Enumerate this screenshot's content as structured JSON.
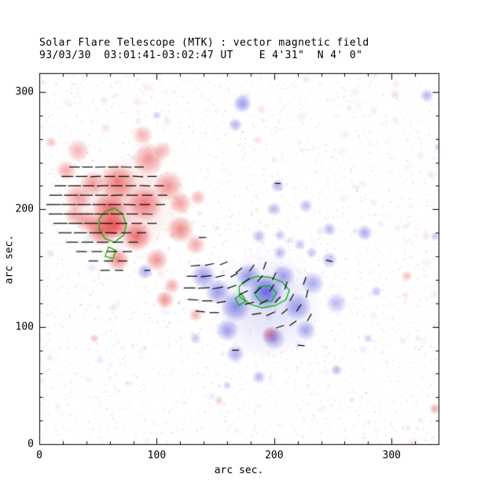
{
  "chart_data": {
    "type": "heatmap",
    "title": "Solar Flare Telescope (MTK) : vector magnetic field",
    "subtitle": "93/03/30  03:01:41-03:02:47 UT    E 4'31\"  N 4' 0\"",
    "xlabel": "arc sec.",
    "ylabel": "arc sec.",
    "xlim": [
      0,
      340
    ],
    "ylim": [
      0,
      316
    ],
    "xticks": [
      0,
      100,
      200,
      300
    ],
    "yticks": [
      0,
      100,
      200,
      300
    ],
    "minor_tick_step": 20,
    "colors": {
      "positive_polarity": "#e42828",
      "negative_polarity": "#4646dc",
      "contour": "#00b400",
      "vector": "#000000",
      "axis": "#000000",
      "background": "#ffffff"
    },
    "blobs": [
      [
        75,
        203,
        42,
        0.22,
        1
      ],
      [
        67,
        223,
        16,
        0.55,
        1
      ],
      [
        93,
        243,
        14,
        0.5,
        1
      ],
      [
        110,
        220,
        13,
        0.5,
        1
      ],
      [
        53,
        183,
        14,
        0.7,
        1
      ],
      [
        83,
        177,
        13,
        0.65,
        1
      ],
      [
        120,
        183,
        12,
        0.55,
        1
      ],
      [
        33,
        210,
        12,
        0.45,
        1
      ],
      [
        23,
        233,
        9,
        0.4,
        1
      ],
      [
        67,
        157,
        10,
        0.55,
        1
      ],
      [
        100,
        157,
        10,
        0.5,
        1
      ],
      [
        90,
        205,
        15,
        0.55,
        1
      ],
      [
        60,
        200,
        15,
        0.65,
        1
      ],
      [
        65,
        186,
        11,
        0.75,
        1
      ],
      [
        40,
        190,
        10,
        0.45,
        1
      ],
      [
        120,
        205,
        10,
        0.45,
        1
      ],
      [
        133,
        170,
        9,
        0.4,
        1
      ],
      [
        107,
        123,
        8,
        0.5,
        1
      ],
      [
        113,
        135,
        7,
        0.4,
        1
      ],
      [
        197,
        93,
        8,
        0.55,
        1
      ],
      [
        133,
        110,
        6,
        0.35,
        1
      ],
      [
        313,
        143,
        5,
        0.3,
        1
      ],
      [
        337,
        30,
        5,
        0.4,
        1
      ],
      [
        47,
        90,
        4,
        0.3,
        1
      ],
      [
        10,
        257,
        5,
        0.3,
        1
      ],
      [
        153,
        37,
        4,
        0.25,
        1
      ],
      [
        45,
        222,
        11,
        0.45,
        1
      ],
      [
        30,
        195,
        9,
        0.4,
        1
      ],
      [
        33,
        250,
        10,
        0.35,
        1
      ],
      [
        135,
        210,
        7,
        0.35,
        1
      ],
      [
        88,
        263,
        9,
        0.35,
        1
      ],
      [
        105,
        250,
        8,
        0.35,
        1
      ],
      [
        195,
        118,
        46,
        0.18,
        -1
      ],
      [
        193,
        130,
        15,
        0.8,
        -1
      ],
      [
        167,
        117,
        13,
        0.6,
        -1
      ],
      [
        220,
        117,
        12,
        0.5,
        -1
      ],
      [
        140,
        143,
        11,
        0.55,
        -1
      ],
      [
        160,
        97,
        10,
        0.5,
        -1
      ],
      [
        200,
        90,
        10,
        0.45,
        -1
      ],
      [
        233,
        137,
        10,
        0.45,
        -1
      ],
      [
        253,
        120,
        9,
        0.38,
        -1
      ],
      [
        167,
        77,
        8,
        0.45,
        -1
      ],
      [
        227,
        97,
        9,
        0.45,
        -1
      ],
      [
        152,
        130,
        11,
        0.55,
        -1
      ],
      [
        178,
        143,
        11,
        0.55,
        -1
      ],
      [
        208,
        143,
        10,
        0.5,
        -1
      ],
      [
        247,
        157,
        7,
        0.38,
        -1
      ],
      [
        90,
        147,
        7,
        0.45,
        -1
      ],
      [
        173,
        290,
        8,
        0.55,
        -1
      ],
      [
        167,
        272,
        6,
        0.4,
        -1
      ],
      [
        203,
        220,
        6,
        0.4,
        -1
      ],
      [
        200,
        200,
        6,
        0.38,
        -1
      ],
      [
        227,
        203,
        6,
        0.38,
        -1
      ],
      [
        247,
        183,
        6,
        0.4,
        -1
      ],
      [
        277,
        180,
        7,
        0.45,
        -1
      ],
      [
        187,
        177,
        6,
        0.38,
        -1
      ],
      [
        330,
        297,
        6,
        0.4,
        -1
      ],
      [
        187,
        57,
        6,
        0.38,
        -1
      ],
      [
        253,
        63,
        5,
        0.32,
        -1
      ],
      [
        160,
        50,
        4,
        0.28,
        -1
      ],
      [
        287,
        130,
        5,
        0.32,
        -1
      ],
      [
        280,
        90,
        4,
        0.28,
        -1
      ],
      [
        133,
        90,
        5,
        0.32,
        -1
      ],
      [
        340,
        253,
        4,
        0.3,
        -1
      ],
      [
        337,
        177,
        4,
        0.3,
        -1
      ],
      [
        205,
        163,
        6,
        0.38,
        -1
      ],
      [
        222,
        170,
        5,
        0.32,
        -1
      ],
      [
        100,
        280,
        4,
        0.28,
        -1
      ],
      [
        205,
        178,
        5,
        0.32,
        -1
      ],
      [
        232,
        163,
        5,
        0.32,
        -1
      ]
    ],
    "vectors": [
      [
        30,
        236,
        0,
        9
      ],
      [
        41,
        236,
        0,
        9
      ],
      [
        52,
        236,
        2,
        9
      ],
      [
        63,
        236,
        0,
        9
      ],
      [
        74,
        236,
        -2,
        9
      ],
      [
        85,
        236,
        0,
        8
      ],
      [
        24,
        228,
        0,
        10
      ],
      [
        36,
        228,
        0,
        10
      ],
      [
        48,
        228,
        3,
        9
      ],
      [
        60,
        228,
        0,
        9
      ],
      [
        72,
        228,
        0,
        9
      ],
      [
        84,
        228,
        -3,
        9
      ],
      [
        96,
        228,
        0,
        8
      ],
      [
        18,
        220,
        0,
        10
      ],
      [
        30,
        220,
        0,
        11
      ],
      [
        42,
        220,
        0,
        10
      ],
      [
        54,
        220,
        2,
        10
      ],
      [
        66,
        220,
        0,
        10
      ],
      [
        78,
        220,
        0,
        9
      ],
      [
        90,
        220,
        -2,
        9
      ],
      [
        102,
        220,
        0,
        8
      ],
      [
        14,
        212,
        0,
        11
      ],
      [
        27,
        212,
        0,
        12
      ],
      [
        40,
        212,
        0,
        11
      ],
      [
        53,
        212,
        0,
        11
      ],
      [
        66,
        212,
        2,
        10
      ],
      [
        79,
        212,
        0,
        10
      ],
      [
        92,
        212,
        0,
        9
      ],
      [
        105,
        212,
        0,
        8
      ],
      [
        12,
        204,
        0,
        12
      ],
      [
        25,
        204,
        0,
        13
      ],
      [
        38,
        204,
        0,
        12
      ],
      [
        51,
        204,
        0,
        12
      ],
      [
        64,
        204,
        0,
        11
      ],
      [
        77,
        204,
        -2,
        10
      ],
      [
        90,
        204,
        0,
        9
      ],
      [
        103,
        204,
        0,
        8
      ],
      [
        14,
        196,
        0,
        12
      ],
      [
        27,
        196,
        0,
        13
      ],
      [
        40,
        196,
        0,
        13
      ],
      [
        53,
        196,
        0,
        12
      ],
      [
        66,
        196,
        0,
        11
      ],
      [
        79,
        196,
        0,
        10
      ],
      [
        92,
        196,
        -2,
        9
      ],
      [
        18,
        188,
        0,
        12
      ],
      [
        31,
        188,
        0,
        12
      ],
      [
        44,
        188,
        0,
        12
      ],
      [
        57,
        188,
        0,
        11
      ],
      [
        70,
        188,
        0,
        10
      ],
      [
        83,
        188,
        0,
        9
      ],
      [
        96,
        188,
        0,
        8
      ],
      [
        22,
        180,
        0,
        11
      ],
      [
        35,
        180,
        0,
        11
      ],
      [
        48,
        180,
        0,
        11
      ],
      [
        61,
        180,
        -2,
        10
      ],
      [
        74,
        180,
        0,
        9
      ],
      [
        87,
        180,
        0,
        8
      ],
      [
        28,
        172,
        0,
        10
      ],
      [
        41,
        172,
        0,
        10
      ],
      [
        54,
        172,
        0,
        10
      ],
      [
        67,
        172,
        0,
        9
      ],
      [
        80,
        172,
        0,
        8
      ],
      [
        36,
        164,
        0,
        9
      ],
      [
        49,
        164,
        0,
        9
      ],
      [
        62,
        164,
        0,
        9
      ],
      [
        75,
        164,
        0,
        8
      ],
      [
        46,
        156,
        0,
        8
      ],
      [
        59,
        156,
        0,
        8
      ],
      [
        71,
        156,
        0,
        8
      ],
      [
        56,
        148,
        0,
        8
      ],
      [
        68,
        148,
        0,
        7
      ],
      [
        133,
        152,
        5,
        8
      ],
      [
        145,
        153,
        12,
        8
      ],
      [
        157,
        154,
        22,
        7
      ],
      [
        130,
        143,
        0,
        9
      ],
      [
        142,
        143,
        6,
        9
      ],
      [
        154,
        143,
        14,
        8
      ],
      [
        166,
        144,
        28,
        7
      ],
      [
        128,
        133,
        0,
        10
      ],
      [
        140,
        133,
        3,
        10
      ],
      [
        152,
        133,
        10,
        9
      ],
      [
        164,
        134,
        20,
        8
      ],
      [
        131,
        123,
        -4,
        9
      ],
      [
        143,
        122,
        0,
        9
      ],
      [
        155,
        121,
        8,
        8
      ],
      [
        137,
        113,
        -6,
        8
      ],
      [
        149,
        112,
        0,
        8
      ],
      [
        170,
        148,
        38,
        7
      ],
      [
        181,
        150,
        55,
        7
      ],
      [
        192,
        152,
        72,
        7
      ],
      [
        176,
        139,
        32,
        8
      ],
      [
        188,
        141,
        50,
        7
      ],
      [
        200,
        143,
        65,
        7
      ],
      [
        174,
        129,
        24,
        8
      ],
      [
        186,
        131,
        40,
        8
      ],
      [
        198,
        133,
        57,
        7
      ],
      [
        210,
        135,
        72,
        7
      ],
      [
        179,
        120,
        14,
        8
      ],
      [
        191,
        121,
        30,
        8
      ],
      [
        203,
        123,
        46,
        7
      ],
      [
        215,
        125,
        62,
        7
      ],
      [
        185,
        111,
        8,
        8
      ],
      [
        197,
        111,
        24,
        8
      ],
      [
        209,
        113,
        40,
        7
      ],
      [
        221,
        116,
        56,
        7
      ],
      [
        228,
        128,
        78,
        7
      ],
      [
        226,
        139,
        70,
        7
      ],
      [
        230,
        108,
        60,
        7
      ],
      [
        205,
        100,
        18,
        7
      ],
      [
        216,
        103,
        35,
        7
      ],
      [
        139,
        176,
        0,
        6
      ],
      [
        247,
        156,
        -10,
        6
      ],
      [
        167,
        80,
        0,
        6
      ],
      [
        223,
        84,
        -5,
        6
      ],
      [
        203,
        222,
        0,
        5
      ],
      [
        92,
        148,
        0,
        5
      ]
    ],
    "contours": [
      {
        "region": "positive",
        "points": [
          [
            56,
            198
          ],
          [
            64,
            201
          ],
          [
            71,
            196
          ],
          [
            74,
            187
          ],
          [
            72,
            178
          ],
          [
            64,
            172
          ],
          [
            56,
            175
          ],
          [
            51,
            183
          ],
          [
            51,
            192
          ]
        ]
      },
      {
        "region": "positive",
        "points": [
          [
            59,
            168
          ],
          [
            65,
            165
          ],
          [
            63,
            158
          ],
          [
            56,
            160
          ]
        ]
      },
      {
        "region": "negative",
        "points": [
          [
            170,
            134
          ],
          [
            177,
            140
          ],
          [
            186,
            143
          ],
          [
            197,
            142
          ],
          [
            207,
            138
          ],
          [
            213,
            131
          ],
          [
            210,
            123
          ],
          [
            201,
            118
          ],
          [
            190,
            116
          ],
          [
            180,
            119
          ],
          [
            171,
            125
          ]
        ]
      },
      {
        "region": "negative",
        "points": [
          [
            187,
            134
          ],
          [
            196,
            135
          ],
          [
            202,
            129
          ],
          [
            198,
            122
          ],
          [
            189,
            121
          ],
          [
            184,
            127
          ]
        ]
      },
      {
        "region": "negative",
        "points": [
          [
            167,
            124
          ],
          [
            172,
            128
          ],
          [
            176,
            122
          ],
          [
            170,
            118
          ]
        ]
      }
    ],
    "noise": {
      "seed": 42,
      "speckle_count": 5200,
      "faint_patch_count": 160
    }
  }
}
